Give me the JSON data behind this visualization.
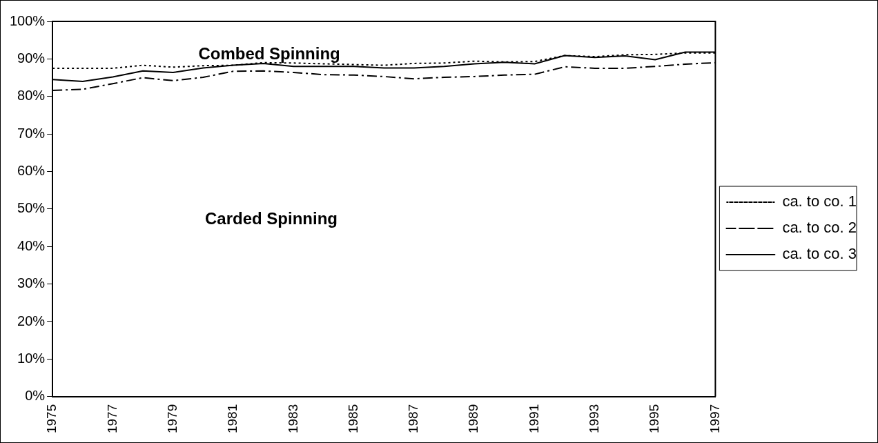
{
  "chart_data": {
    "type": "line",
    "x": [
      1975,
      1976,
      1977,
      1978,
      1979,
      1980,
      1981,
      1982,
      1983,
      1984,
      1985,
      1986,
      1987,
      1988,
      1989,
      1990,
      1991,
      1992,
      1993,
      1994,
      1995,
      1996,
      1997
    ],
    "series": [
      {
        "name": "ca. to co. 1",
        "color": "#000000",
        "line_style": "dotted",
        "values": [
          87.5,
          87.5,
          87.5,
          88.3,
          87.8,
          88.2,
          88.3,
          89,
          88.9,
          88.7,
          88.5,
          88.3,
          88.8,
          88.9,
          89.4,
          89.2,
          89.3,
          90.9,
          90.6,
          91.1,
          91.2,
          91.6,
          91.6
        ]
      },
      {
        "name": "ca. to co. 2",
        "color": "#000000",
        "line_style": "dashed",
        "values": [
          81.6,
          81.9,
          83.4,
          85,
          84.2,
          85.1,
          86.7,
          86.8,
          86.4,
          85.8,
          85.7,
          85.3,
          84.7,
          85.1,
          85.3,
          85.7,
          85.9,
          87.9,
          87.5,
          87.5,
          88,
          88.6,
          89
        ]
      },
      {
        "name": "ca. to co. 3",
        "color": "#000000",
        "line_style": "solid",
        "values": [
          84.5,
          84,
          85.2,
          86.8,
          86.4,
          87.6,
          88.3,
          88.8,
          88,
          88,
          88,
          87.6,
          87.6,
          88,
          88.7,
          89.1,
          88.7,
          90.9,
          90.4,
          90.8,
          89.8,
          91.8,
          91.8
        ]
      }
    ],
    "xlim": [
      1975,
      1997
    ],
    "xticks": [
      1975,
      1977,
      1979,
      1981,
      1983,
      1985,
      1987,
      1989,
      1991,
      1993,
      1995,
      1997
    ],
    "ylim": [
      0,
      100
    ],
    "yticks": [
      {
        "value": 0,
        "label": "0%"
      },
      {
        "value": 10,
        "label": "10%"
      },
      {
        "value": 20,
        "label": "20%"
      },
      {
        "value": 30,
        "label": "30%"
      },
      {
        "value": 40,
        "label": "40%"
      },
      {
        "value": 50,
        "label": "50%"
      },
      {
        "value": 60,
        "label": "60%"
      },
      {
        "value": 70,
        "label": "70%"
      },
      {
        "value": 80,
        "label": "80%"
      },
      {
        "value": 90,
        "label": "90%"
      },
      {
        "value": 100,
        "label": "100%"
      }
    ],
    "grid": false,
    "legend": "right",
    "marker": "none",
    "annotations": [
      "Combed Spinning",
      "Carded Spinning"
    ]
  }
}
